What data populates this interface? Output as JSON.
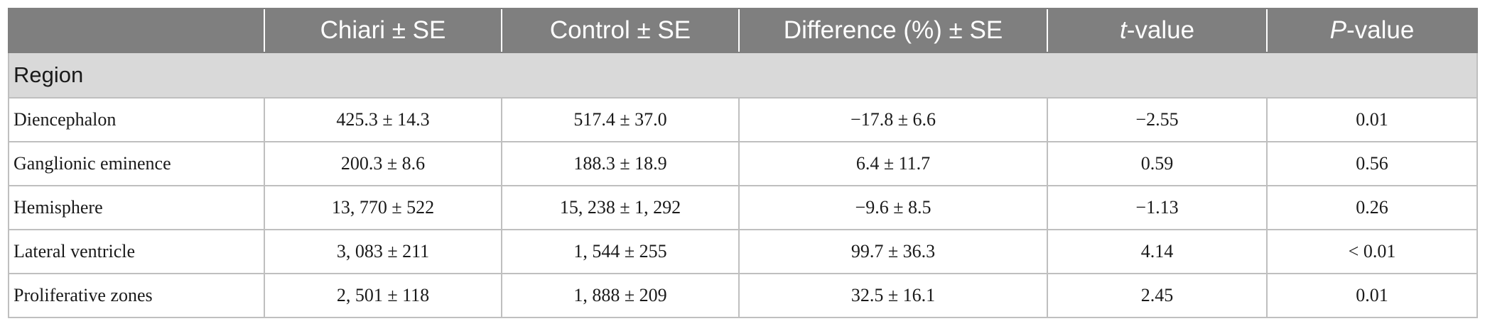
{
  "table": {
    "columns": [
      {
        "pre": "",
        "ital": "",
        "post": ""
      },
      {
        "pre": "Chiari ± SE",
        "ital": "",
        "post": ""
      },
      {
        "pre": "Control ± SE",
        "ital": "",
        "post": ""
      },
      {
        "pre": "Difference (%) ± SE",
        "ital": "",
        "post": ""
      },
      {
        "pre": "",
        "ital": "t",
        "post": "-value"
      },
      {
        "pre": "",
        "ital": "P",
        "post": "-value"
      }
    ],
    "section_label": "Region",
    "rows": [
      [
        "Diencephalon",
        "425.3 ± 14.3",
        "517.4 ± 37.0",
        "−17.8 ± 6.6",
        "−2.55",
        "0.01"
      ],
      [
        "Ganglionic eminence",
        "200.3 ± 8.6",
        "188.3 ± 18.9",
        "6.4 ± 11.7",
        "0.59",
        "0.56"
      ],
      [
        "Hemisphere",
        "13, 770 ± 522",
        "15, 238 ± 1, 292",
        "−9.6 ± 8.5",
        "−1.13",
        "0.26"
      ],
      [
        "Lateral ventricle",
        "3, 083 ± 211",
        "1, 544 ± 255",
        "99.7 ± 36.3",
        "4.14",
        "< 0.01"
      ],
      [
        "Proliferative zones",
        "2, 501 ± 118",
        "1, 888 ± 209",
        "32.5 ± 16.1",
        "2.45",
        "0.01"
      ]
    ]
  },
  "colors": {
    "header_bg": "#7f7f7f",
    "section_bg": "#d9d9d9",
    "border": "#bfbfbf"
  }
}
